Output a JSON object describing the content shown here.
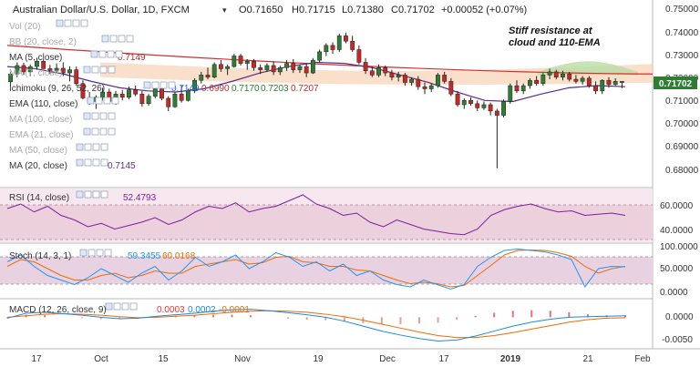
{
  "header": {
    "symbol": "Australian Dollar/U.S. Dollar, 1D, FXCM",
    "ohlc": {
      "o_label": "O",
      "o": "0.71650",
      "h_label": "H",
      "h": "0.71715",
      "l_label": "L",
      "l": "0.71380",
      "c_label": "C",
      "c": "0.71702",
      "chg": "+0.00052 (+0.07%)"
    }
  },
  "annotation": {
    "line1": "Stiff resistance at",
    "line2": "cloud and 110-EMA"
  },
  "indicators": [
    {
      "name": "Vol (20)",
      "value": ""
    },
    {
      "name": "BB (20, close, 2)",
      "value": ""
    },
    {
      "name": "MA (5, close)",
      "value": "0.7149",
      "color": "#b03030"
    },
    {
      "name": "MA (7, close)",
      "value": ""
    },
    {
      "name": "Ichimoku (9, 26, 52, 26)",
      "values": [
        "0.7149",
        "0.6990",
        "0.7170",
        "0.7203",
        "0.7207"
      ],
      "colors": [
        "#2962ff",
        "#b03030",
        "#2e7d32",
        "#2e7d32",
        "#c62828"
      ]
    },
    {
      "name": "EMA (110, close)",
      "value": ""
    },
    {
      "name": "MA (100, close)",
      "value": ""
    },
    {
      "name": "EMA (21, close)",
      "value": ""
    },
    {
      "name": "MA (50, close)",
      "value": ""
    },
    {
      "name": "MA (20, close)",
      "value": "0.7145",
      "color": "#5b2c83"
    }
  ],
  "price_axis": {
    "ticks": [
      "0.75000",
      "0.74000",
      "0.73000",
      "0.72000",
      "0.71000",
      "0.70000",
      "0.69000",
      "0.68000"
    ],
    "current": "0.71702"
  },
  "rsi": {
    "label": "RSI (14, close)",
    "value": "52.4793",
    "color": "#7b1fa2",
    "ticks": [
      "60.0000",
      "40.0000"
    ]
  },
  "stoch": {
    "label": "Stoch (14, 3, 1)",
    "k_value": "59.3455",
    "d_value": "60.0168",
    "k_color": "#2196f3",
    "d_color": "#ef6c00",
    "ticks": [
      "100.0000",
      "50.0000",
      "0.0000"
    ]
  },
  "macd": {
    "label": "MACD (12, 26, close, 9)",
    "values": [
      "0.0003",
      "0.0002",
      "-0.0001"
    ],
    "colors": [
      "#e53935",
      "#1e88e5",
      "#ef6c00"
    ],
    "ticks": [
      "0.0000",
      "-0.0050"
    ]
  },
  "time_axis": {
    "labels": [
      "17",
      "Oct",
      "15",
      "Nov",
      "19",
      "Dec",
      "17",
      "2019",
      "21",
      "Feb"
    ]
  },
  "chart_data": {
    "type": "candlestick",
    "title": "Australian Dollar/U.S. Dollar, 1D, FXCM",
    "ylim": [
      0.672,
      0.752
    ],
    "candles": [
      {
        "o": 0.7168,
        "h": 0.7215,
        "l": 0.7152,
        "c": 0.7205
      },
      {
        "o": 0.7205,
        "h": 0.726,
        "l": 0.719,
        "c": 0.7245
      },
      {
        "o": 0.7245,
        "h": 0.7258,
        "l": 0.72,
        "c": 0.7215
      },
      {
        "o": 0.7215,
        "h": 0.725,
        "l": 0.7195,
        "c": 0.724
      },
      {
        "o": 0.724,
        "h": 0.7282,
        "l": 0.7225,
        "c": 0.7265
      },
      {
        "o": 0.7265,
        "h": 0.7272,
        "l": 0.7225,
        "c": 0.723
      },
      {
        "o": 0.723,
        "h": 0.7248,
        "l": 0.7205,
        "c": 0.7222
      },
      {
        "o": 0.7222,
        "h": 0.7255,
        "l": 0.721,
        "c": 0.7232
      },
      {
        "o": 0.7232,
        "h": 0.726,
        "l": 0.7195,
        "c": 0.721
      },
      {
        "o": 0.721,
        "h": 0.724,
        "l": 0.717,
        "c": 0.7225
      },
      {
        "o": 0.7225,
        "h": 0.724,
        "l": 0.715,
        "c": 0.716
      },
      {
        "o": 0.716,
        "h": 0.7175,
        "l": 0.7085,
        "c": 0.7092
      },
      {
        "o": 0.7092,
        "h": 0.712,
        "l": 0.706,
        "c": 0.7075
      },
      {
        "o": 0.7075,
        "h": 0.7105,
        "l": 0.704,
        "c": 0.7095
      },
      {
        "o": 0.7095,
        "h": 0.714,
        "l": 0.708,
        "c": 0.712
      },
      {
        "o": 0.712,
        "h": 0.7135,
        "l": 0.7065,
        "c": 0.7075
      },
      {
        "o": 0.7075,
        "h": 0.7125,
        "l": 0.706,
        "c": 0.711
      },
      {
        "o": 0.711,
        "h": 0.713,
        "l": 0.708,
        "c": 0.7095
      },
      {
        "o": 0.7095,
        "h": 0.7145,
        "l": 0.7085,
        "c": 0.713
      },
      {
        "o": 0.713,
        "h": 0.715,
        "l": 0.71,
        "c": 0.711
      },
      {
        "o": 0.711,
        "h": 0.7125,
        "l": 0.705,
        "c": 0.7065
      },
      {
        "o": 0.7065,
        "h": 0.711,
        "l": 0.7055,
        "c": 0.71
      },
      {
        "o": 0.71,
        "h": 0.7145,
        "l": 0.709,
        "c": 0.7135
      },
      {
        "o": 0.7135,
        "h": 0.715,
        "l": 0.708,
        "c": 0.709
      },
      {
        "o": 0.709,
        "h": 0.71,
        "l": 0.703,
        "c": 0.705
      },
      {
        "o": 0.705,
        "h": 0.712,
        "l": 0.7045,
        "c": 0.711
      },
      {
        "o": 0.711,
        "h": 0.715,
        "l": 0.707,
        "c": 0.708
      },
      {
        "o": 0.708,
        "h": 0.7135,
        "l": 0.7075,
        "c": 0.7125
      },
      {
        "o": 0.7125,
        "h": 0.7185,
        "l": 0.7115,
        "c": 0.7175
      },
      {
        "o": 0.7175,
        "h": 0.7215,
        "l": 0.716,
        "c": 0.72
      },
      {
        "o": 0.72,
        "h": 0.7235,
        "l": 0.718,
        "c": 0.719
      },
      {
        "o": 0.719,
        "h": 0.726,
        "l": 0.7185,
        "c": 0.725
      },
      {
        "o": 0.725,
        "h": 0.727,
        "l": 0.7215,
        "c": 0.723
      },
      {
        "o": 0.723,
        "h": 0.725,
        "l": 0.72,
        "c": 0.724
      },
      {
        "o": 0.724,
        "h": 0.73,
        "l": 0.7235,
        "c": 0.729
      },
      {
        "o": 0.729,
        "h": 0.73,
        "l": 0.7245,
        "c": 0.7255
      },
      {
        "o": 0.7255,
        "h": 0.7275,
        "l": 0.7225,
        "c": 0.7265
      },
      {
        "o": 0.7265,
        "h": 0.7275,
        "l": 0.722,
        "c": 0.7235
      },
      {
        "o": 0.7235,
        "h": 0.725,
        "l": 0.7205,
        "c": 0.7225
      },
      {
        "o": 0.7225,
        "h": 0.7255,
        "l": 0.7215,
        "c": 0.7245
      },
      {
        "o": 0.7245,
        "h": 0.7265,
        "l": 0.72,
        "c": 0.7215
      },
      {
        "o": 0.7215,
        "h": 0.7245,
        "l": 0.72,
        "c": 0.7235
      },
      {
        "o": 0.7235,
        "h": 0.727,
        "l": 0.722,
        "c": 0.7255
      },
      {
        "o": 0.7255,
        "h": 0.7275,
        "l": 0.721,
        "c": 0.7225
      },
      {
        "o": 0.7225,
        "h": 0.725,
        "l": 0.721,
        "c": 0.724
      },
      {
        "o": 0.724,
        "h": 0.7255,
        "l": 0.719,
        "c": 0.721
      },
      {
        "o": 0.721,
        "h": 0.728,
        "l": 0.7205,
        "c": 0.727
      },
      {
        "o": 0.727,
        "h": 0.732,
        "l": 0.726,
        "c": 0.731
      },
      {
        "o": 0.731,
        "h": 0.735,
        "l": 0.729,
        "c": 0.734
      },
      {
        "o": 0.734,
        "h": 0.7355,
        "l": 0.73,
        "c": 0.732
      },
      {
        "o": 0.732,
        "h": 0.7395,
        "l": 0.731,
        "c": 0.7385
      },
      {
        "o": 0.7385,
        "h": 0.74,
        "l": 0.735,
        "c": 0.736
      },
      {
        "o": 0.736,
        "h": 0.7385,
        "l": 0.731,
        "c": 0.732
      },
      {
        "o": 0.732,
        "h": 0.734,
        "l": 0.725,
        "c": 0.726
      },
      {
        "o": 0.726,
        "h": 0.728,
        "l": 0.7205,
        "c": 0.722
      },
      {
        "o": 0.722,
        "h": 0.724,
        "l": 0.719,
        "c": 0.72
      },
      {
        "o": 0.72,
        "h": 0.725,
        "l": 0.719,
        "c": 0.7235
      },
      {
        "o": 0.7235,
        "h": 0.7245,
        "l": 0.7195,
        "c": 0.721
      },
      {
        "o": 0.721,
        "h": 0.7225,
        "l": 0.7175,
        "c": 0.719
      },
      {
        "o": 0.719,
        "h": 0.7215,
        "l": 0.717,
        "c": 0.72
      },
      {
        "o": 0.72,
        "h": 0.721,
        "l": 0.715,
        "c": 0.7165
      },
      {
        "o": 0.7165,
        "h": 0.719,
        "l": 0.715,
        "c": 0.718
      },
      {
        "o": 0.718,
        "h": 0.7195,
        "l": 0.713,
        "c": 0.7145
      },
      {
        "o": 0.7145,
        "h": 0.7165,
        "l": 0.711,
        "c": 0.7135
      },
      {
        "o": 0.7135,
        "h": 0.716,
        "l": 0.712,
        "c": 0.715
      },
      {
        "o": 0.715,
        "h": 0.721,
        "l": 0.714,
        "c": 0.72
      },
      {
        "o": 0.72,
        "h": 0.7215,
        "l": 0.716,
        "c": 0.717
      },
      {
        "o": 0.717,
        "h": 0.7185,
        "l": 0.71,
        "c": 0.711
      },
      {
        "o": 0.711,
        "h": 0.7125,
        "l": 0.705,
        "c": 0.706
      },
      {
        "o": 0.706,
        "h": 0.709,
        "l": 0.704,
        "c": 0.708
      },
      {
        "o": 0.708,
        "h": 0.7095,
        "l": 0.7055,
        "c": 0.7065
      },
      {
        "o": 0.7065,
        "h": 0.708,
        "l": 0.703,
        "c": 0.7045
      },
      {
        "o": 0.7045,
        "h": 0.7075,
        "l": 0.7035,
        "c": 0.706
      },
      {
        "o": 0.706,
        "h": 0.707,
        "l": 0.701,
        "c": 0.703
      },
      {
        "o": 0.703,
        "h": 0.704,
        "l": 0.676,
        "c": 0.701
      },
      {
        "o": 0.701,
        "h": 0.7085,
        "l": 0.7,
        "c": 0.7075
      },
      {
        "o": 0.7075,
        "h": 0.716,
        "l": 0.7065,
        "c": 0.715
      },
      {
        "o": 0.715,
        "h": 0.7175,
        "l": 0.7115,
        "c": 0.7125
      },
      {
        "o": 0.7125,
        "h": 0.716,
        "l": 0.711,
        "c": 0.715
      },
      {
        "o": 0.715,
        "h": 0.7185,
        "l": 0.7135,
        "c": 0.7175
      },
      {
        "o": 0.7175,
        "h": 0.7195,
        "l": 0.715,
        "c": 0.716
      },
      {
        "o": 0.716,
        "h": 0.721,
        "l": 0.715,
        "c": 0.72
      },
      {
        "o": 0.72,
        "h": 0.723,
        "l": 0.718,
        "c": 0.7215
      },
      {
        "o": 0.7215,
        "h": 0.7225,
        "l": 0.718,
        "c": 0.719
      },
      {
        "o": 0.719,
        "h": 0.722,
        "l": 0.7175,
        "c": 0.7205
      },
      {
        "o": 0.7205,
        "h": 0.7215,
        "l": 0.717,
        "c": 0.718
      },
      {
        "o": 0.718,
        "h": 0.72,
        "l": 0.716,
        "c": 0.717
      },
      {
        "o": 0.717,
        "h": 0.7195,
        "l": 0.7155,
        "c": 0.7185
      },
      {
        "o": 0.7185,
        "h": 0.7195,
        "l": 0.714,
        "c": 0.715
      },
      {
        "o": 0.715,
        "h": 0.717,
        "l": 0.711,
        "c": 0.7125
      },
      {
        "o": 0.7125,
        "h": 0.718,
        "l": 0.711,
        "c": 0.7175
      },
      {
        "o": 0.7175,
        "h": 0.719,
        "l": 0.714,
        "c": 0.7155
      },
      {
        "o": 0.7155,
        "h": 0.7185,
        "l": 0.715,
        "c": 0.717
      },
      {
        "o": 0.7165,
        "h": 0.71715,
        "l": 0.7138,
        "c": 0.71702
      }
    ],
    "ema110": {
      "start": 0.734,
      "end": 0.7205
    },
    "ma20": [
      0.724,
      0.723,
      0.7205,
      0.717,
      0.714,
      0.7125,
      0.712,
      0.7135,
      0.717,
      0.721,
      0.724,
      0.726,
      0.7255,
      0.7235,
      0.72,
      0.7165,
      0.712,
      0.708,
      0.7075,
      0.711,
      0.714,
      0.715,
      0.7145
    ],
    "rsi_values": [
      58,
      62,
      55,
      60,
      52,
      48,
      42,
      45,
      40,
      43,
      46,
      50,
      44,
      48,
      55,
      60,
      58,
      63,
      55,
      58,
      60,
      65,
      70,
      62,
      58,
      52,
      54,
      46,
      42,
      48,
      44,
      40,
      38,
      36,
      35,
      40,
      52,
      57,
      60,
      62,
      58,
      55,
      56,
      52,
      53,
      54,
      52
    ],
    "rsi_ylim": [
      30,
      70
    ],
    "stoch_k": [
      70,
      85,
      60,
      40,
      30,
      20,
      35,
      55,
      40,
      25,
      45,
      60,
      30,
      50,
      80,
      60,
      70,
      85,
      55,
      70,
      90,
      80,
      60,
      70,
      50,
      65,
      40,
      50,
      30,
      20,
      15,
      30,
      20,
      10,
      20,
      60,
      80,
      95,
      98,
      95,
      92,
      85,
      75,
      15,
      55,
      60,
      59
    ],
    "stoch_d": [
      60,
      75,
      70,
      55,
      40,
      30,
      30,
      40,
      45,
      35,
      40,
      50,
      45,
      45,
      60,
      65,
      70,
      75,
      65,
      68,
      80,
      82,
      70,
      68,
      60,
      60,
      52,
      50,
      40,
      30,
      22,
      25,
      22,
      15,
      18,
      40,
      62,
      85,
      95,
      96,
      95,
      90,
      82,
      60,
      45,
      55,
      60
    ],
    "stoch_ylim": [
      -5,
      105
    ],
    "macd_line": [
      -0.0002,
      0.0008,
      0.001,
      0.0007,
      0.0004,
      0.0,
      -0.0003,
      -0.0002,
      0.0002,
      0.0005,
      0.0008,
      0.0012,
      0.0015,
      0.0016,
      0.0013,
      0.0009,
      0.0005,
      0.0,
      -0.0008,
      -0.0018,
      -0.0028,
      -0.0036,
      -0.0043,
      -0.0048,
      -0.0046,
      -0.0038,
      -0.0028,
      -0.0018,
      -0.001,
      -0.0004,
      0.0,
      0.0001,
      0.0002,
      0.0003
    ],
    "macd_signal": [
      0.0,
      0.0003,
      0.0006,
      0.0007,
      0.0006,
      0.0004,
      0.0001,
      -0.0001,
      0.0,
      0.0002,
      0.0004,
      0.0007,
      0.001,
      0.0012,
      0.0013,
      0.0012,
      0.001,
      0.0006,
      0.0001,
      -0.0006,
      -0.0014,
      -0.0022,
      -0.003,
      -0.0037,
      -0.0041,
      -0.0041,
      -0.0037,
      -0.0031,
      -0.0024,
      -0.0017,
      -0.001,
      -0.0005,
      -0.0002,
      -0.0001
    ],
    "macd_ylim": [
      -0.006,
      0.003
    ]
  }
}
